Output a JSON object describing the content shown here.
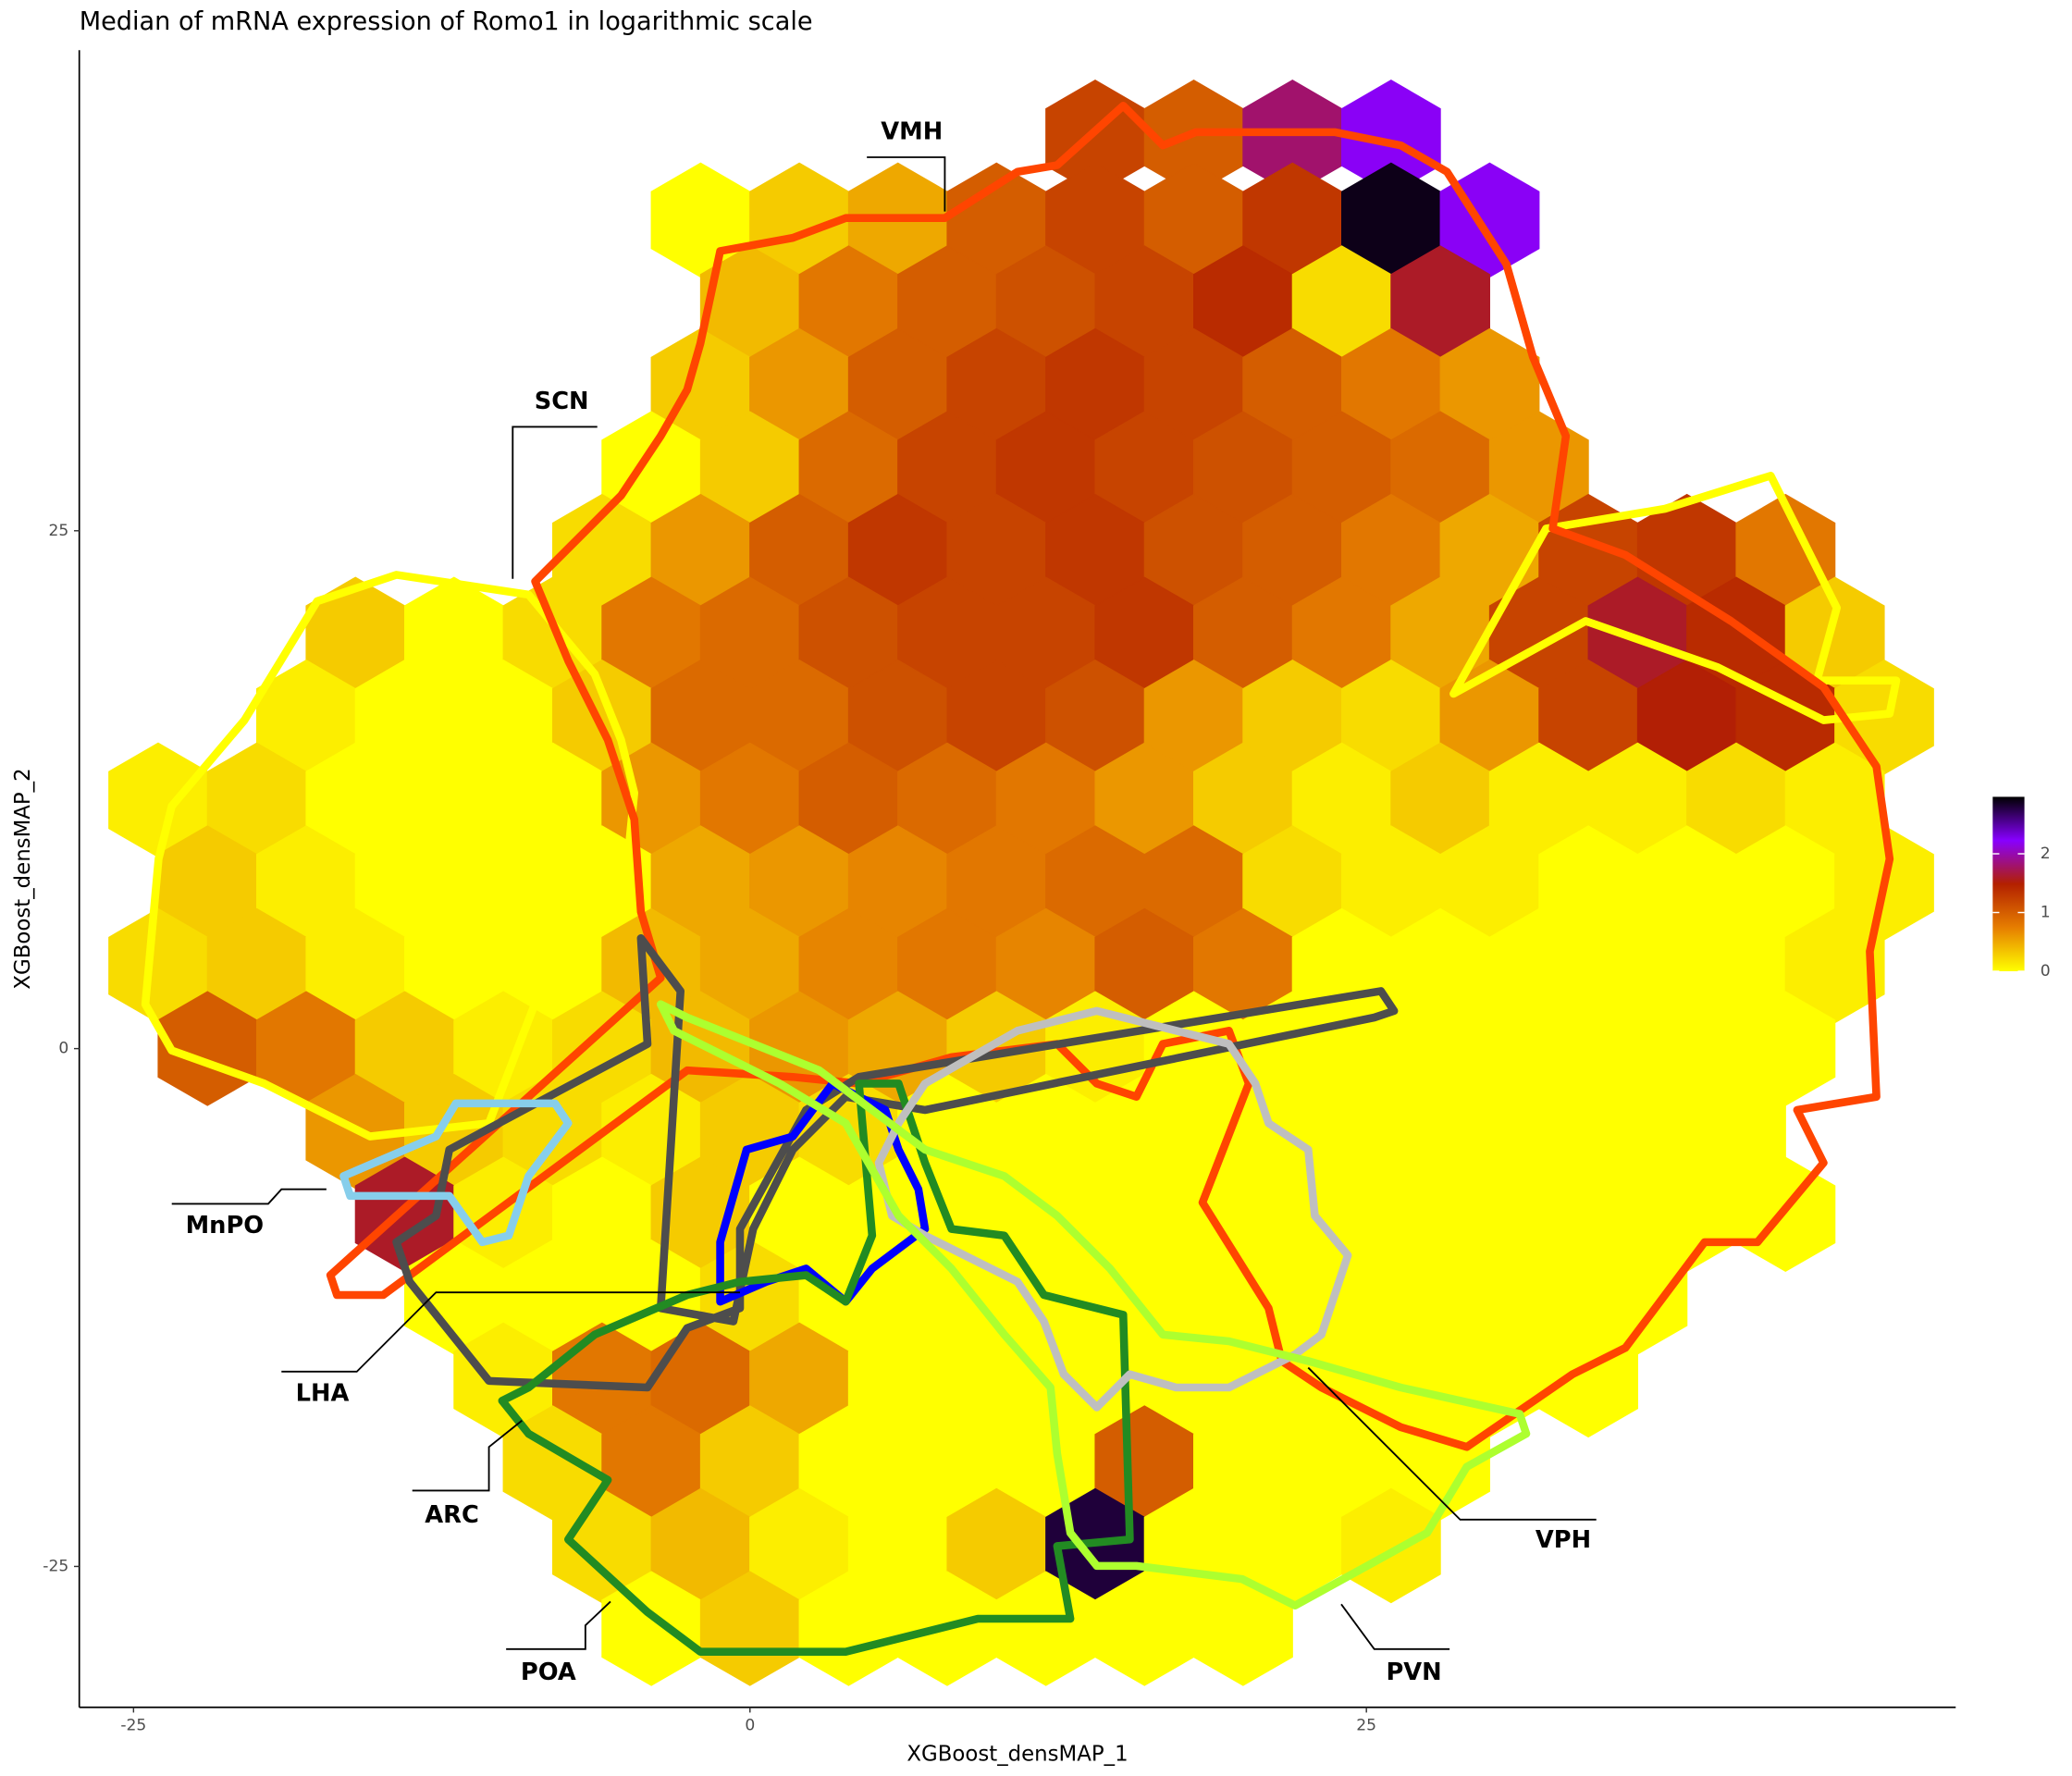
{
  "chart_data": {
    "type": "hexbin",
    "title": "Median of mRNA expression of Romo1 in logarithmic scale",
    "x_label": "XGBoost_densMAP_1",
    "y_label": "XGBoost_densMAP_2",
    "xlim": [
      -27.2,
      48.9
    ],
    "ylim": [
      -31.8,
      48.2
    ],
    "xticks": [
      -25,
      0,
      25
    ],
    "yticks": [
      -25,
      0,
      25
    ],
    "colorbar": {
      "lim": [
        0,
        2.97
      ],
      "ticks": [
        0,
        1,
        2
      ],
      "colors": [
        "#ffff00",
        "#e67e00",
        "#b32000",
        "#8800ff",
        "#000000"
      ]
    },
    "annotations": [
      "VMH",
      "SCN",
      "MnPO",
      "LHA",
      "ARC",
      "POA",
      "VPH",
      "PVN"
    ],
    "rows": [
      {
        "y": 44,
        "x": [
          14,
          18,
          22,
          26
        ],
        "values": [
          1.2,
          1.0,
          1.8,
          2.2
        ]
      },
      {
        "y": 40,
        "x": [
          -2,
          2,
          6,
          10,
          14,
          18,
          22,
          26,
          30
        ],
        "values": [
          0,
          0.3,
          0.5,
          1.0,
          1.2,
          1.0,
          1.3,
          2.9,
          2.2
        ]
      },
      {
        "y": 36,
        "x": [
          0,
          4,
          8,
          12,
          16,
          20,
          24,
          28
        ],
        "values": [
          0.4,
          0.8,
          1.0,
          1.1,
          1.2,
          1.4,
          0.2,
          1.6
        ]
      },
      {
        "y": 32,
        "x": [
          -2,
          2,
          6,
          10,
          14,
          18,
          22,
          26,
          30
        ],
        "values": [
          0.3,
          0.6,
          1.0,
          1.2,
          1.3,
          1.2,
          1.0,
          0.8,
          0.6
        ]
      },
      {
        "y": 28,
        "x": [
          -4,
          0,
          4,
          8,
          12,
          16,
          20,
          24,
          28,
          32
        ],
        "values": [
          0,
          0.3,
          0.9,
          1.2,
          1.3,
          1.2,
          1.1,
          1.0,
          0.9,
          0.6
        ]
      },
      {
        "y": 24,
        "x": [
          -6,
          -2,
          2,
          6,
          10,
          14,
          18,
          22,
          26,
          30,
          34,
          38,
          42
        ],
        "values": [
          0.2,
          0.6,
          1.0,
          1.3,
          1.2,
          1.3,
          1.1,
          1.0,
          0.8,
          0.5,
          1.2,
          1.3,
          0.8
        ]
      },
      {
        "y": 20,
        "x": [
          -16,
          -12,
          -8,
          -4,
          0,
          4,
          8,
          12,
          16,
          20,
          24,
          28,
          32,
          36,
          40,
          44
        ],
        "values": [
          0.3,
          0,
          0.2,
          0.8,
          0.9,
          1.1,
          1.2,
          1.2,
          1.3,
          1.0,
          0.8,
          0.5,
          1.2,
          1.6,
          1.4,
          0.3
        ]
      },
      {
        "y": 16,
        "x": [
          -18,
          -14,
          -10,
          -6,
          -2,
          2,
          6,
          10,
          14,
          18,
          22,
          26,
          30,
          34,
          38,
          42,
          46
        ],
        "values": [
          0.1,
          0,
          0,
          0.3,
          0.9,
          0.9,
          1.1,
          1.2,
          1.1,
          0.6,
          0.3,
          0.2,
          0.6,
          1.2,
          1.5,
          1.4,
          0.2
        ]
      },
      {
        "y": 12,
        "x": [
          -24,
          -20,
          -16,
          -12,
          -8,
          -4,
          0,
          4,
          8,
          12,
          16,
          20,
          24,
          28,
          32,
          36,
          40,
          44
        ],
        "values": [
          0.1,
          0.2,
          0,
          0,
          0,
          0.6,
          0.8,
          1.0,
          0.9,
          0.8,
          0.6,
          0.3,
          0.1,
          0.3,
          0.1,
          0.1,
          0.2,
          0.1
        ]
      },
      {
        "y": 8,
        "x": [
          -22,
          -18,
          -14,
          -10,
          -6,
          -2,
          2,
          6,
          10,
          14,
          18,
          22,
          26,
          30,
          34,
          38,
          42,
          46
        ],
        "values": [
          0.3,
          0.1,
          0,
          0,
          0,
          0.5,
          0.6,
          0.7,
          0.8,
          0.9,
          0.9,
          0.2,
          0.1,
          0.1,
          0,
          0,
          0,
          0.1
        ]
      },
      {
        "y": 4,
        "x": [
          -24,
          -20,
          -16,
          -12,
          -8,
          -4,
          0,
          4,
          8,
          12,
          16,
          20,
          24,
          28,
          32,
          36,
          40,
          44
        ],
        "values": [
          0.2,
          0.3,
          0.1,
          0,
          0,
          0.4,
          0.5,
          0.7,
          0.8,
          0.7,
          1.0,
          0.8,
          0,
          0,
          0,
          0,
          0,
          0.1
        ]
      },
      {
        "y": 0,
        "x": [
          -22,
          -18,
          -14,
          -10,
          -6,
          -2,
          2,
          6,
          10,
          14,
          18,
          22,
          26,
          30,
          34,
          38,
          42
        ],
        "values": [
          1.0,
          0.8,
          0.3,
          0.1,
          0.2,
          0.4,
          0.6,
          0.5,
          0.3,
          0.1,
          0,
          0,
          0,
          0,
          0,
          0,
          0
        ]
      },
      {
        "y": -4,
        "x": [
          -16,
          -12,
          -8,
          -4,
          0,
          4,
          8,
          12,
          16,
          20,
          24,
          28,
          32,
          36,
          40
        ],
        "values": [
          0.6,
          0.3,
          0.2,
          0.1,
          0.3,
          0.2,
          0,
          0,
          0,
          0,
          0,
          0,
          0,
          0,
          0
        ]
      },
      {
        "y": -8,
        "x": [
          -14,
          -10,
          -6,
          -2,
          2,
          6,
          10,
          14,
          18,
          22,
          26,
          30,
          34,
          38,
          42
        ],
        "values": [
          1.6,
          0.1,
          0,
          0.3,
          0,
          0,
          0,
          0,
          0,
          0,
          0,
          0,
          0,
          0,
          0
        ]
      },
      {
        "y": -12,
        "x": [
          -12,
          -8,
          -4,
          0,
          4,
          8,
          12,
          16,
          20,
          24,
          28,
          32,
          36
        ],
        "values": [
          0,
          0,
          0,
          0.2,
          0,
          0,
          0,
          0,
          0,
          0,
          0,
          0,
          0
        ]
      },
      {
        "y": -16,
        "x": [
          -10,
          -6,
          -2,
          2,
          6,
          10,
          14,
          18,
          22,
          26,
          30,
          34
        ],
        "values": [
          0.1,
          0.8,
          0.9,
          0.5,
          0,
          0,
          0,
          0,
          0,
          0,
          0,
          0
        ]
      },
      {
        "y": -20,
        "x": [
          -8,
          -4,
          0,
          4,
          8,
          12,
          16,
          20,
          24,
          28
        ],
        "values": [
          0.2,
          0.8,
          0.3,
          0,
          0,
          0,
          1.0,
          0,
          0,
          0
        ]
      },
      {
        "y": -24,
        "x": [
          -6,
          -2,
          2,
          6,
          10,
          14,
          18,
          22,
          26
        ],
        "values": [
          0.2,
          0.4,
          0.1,
          0,
          0.3,
          2.8,
          0,
          0,
          0.1
        ]
      },
      {
        "y": -28,
        "x": [
          -4,
          0,
          4,
          8,
          12,
          16,
          20
        ],
        "values": [
          0,
          0.3,
          0,
          0,
          0,
          0,
          0
        ]
      }
    ]
  }
}
